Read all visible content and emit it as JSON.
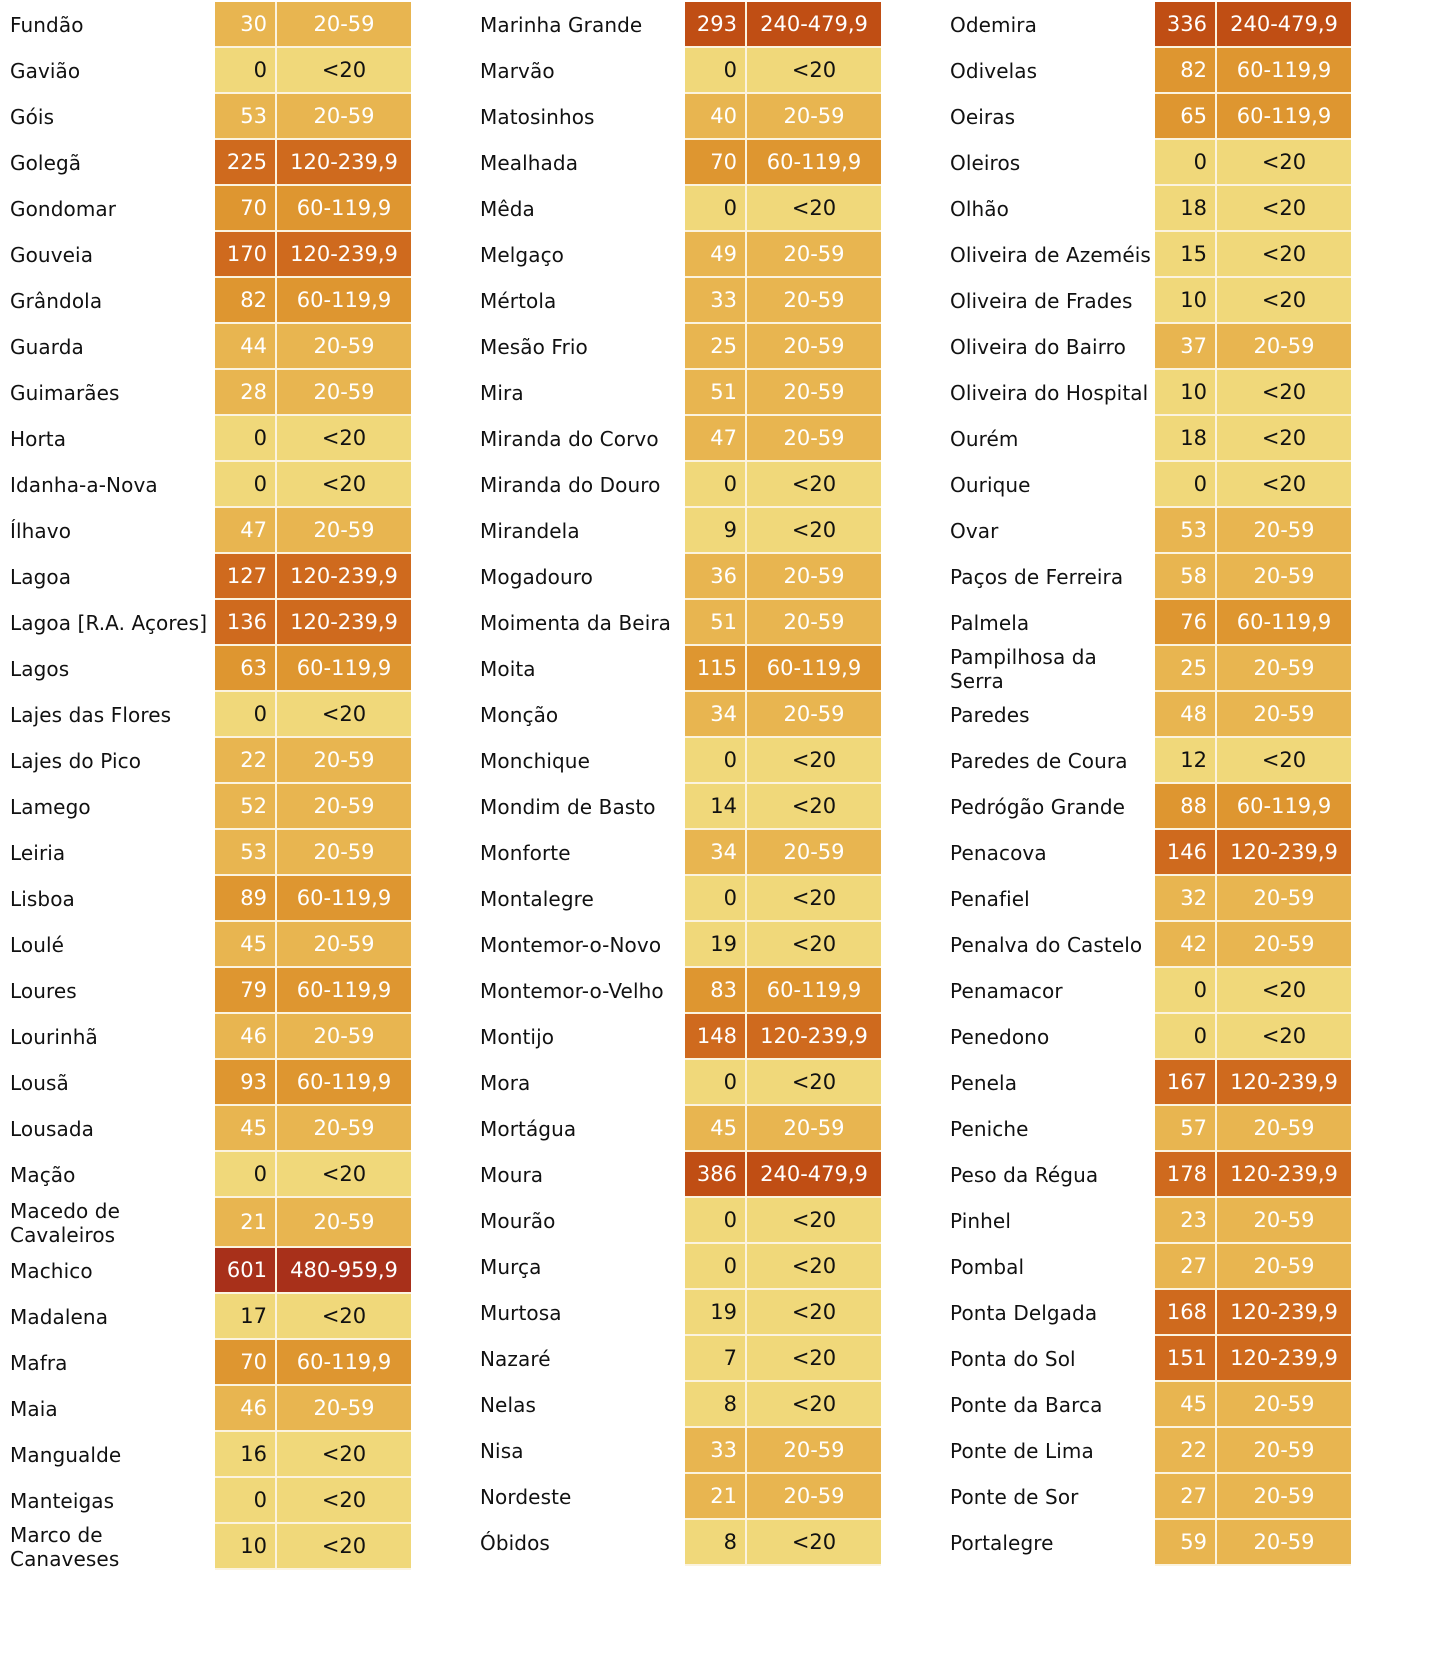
{
  "category_colors": {
    "<20": "#f0d87a",
    "20-59": "#e8b550",
    "60-119,9": "#de9630",
    "120-239,9": "#cf6a1e",
    "240-479,9": "#c04e14",
    "480-959,9": "#a8301a"
  },
  "columns": [
    {
      "rows": [
        {
          "name": "Fundão",
          "value": "30",
          "category": "20-59"
        },
        {
          "name": "Gavião",
          "value": "0",
          "category": "<20"
        },
        {
          "name": "Góis",
          "value": "53",
          "category": "20-59"
        },
        {
          "name": "Golegã",
          "value": "225",
          "category": "120-239,9"
        },
        {
          "name": "Gondomar",
          "value": "70",
          "category": "60-119,9"
        },
        {
          "name": "Gouveia",
          "value": "170",
          "category": "120-239,9"
        },
        {
          "name": "Grândola",
          "value": "82",
          "category": "60-119,9"
        },
        {
          "name": "Guarda",
          "value": "44",
          "category": "20-59"
        },
        {
          "name": "Guimarães",
          "value": "28",
          "category": "20-59"
        },
        {
          "name": "Horta",
          "value": "0",
          "category": "<20"
        },
        {
          "name": "Idanha-a-Nova",
          "value": "0",
          "category": "<20"
        },
        {
          "name": "Ílhavo",
          "value": "47",
          "category": "20-59"
        },
        {
          "name": "Lagoa",
          "value": "127",
          "category": "120-239,9"
        },
        {
          "name": "Lagoa [R.A. Açores]",
          "value": "136",
          "category": "120-239,9"
        },
        {
          "name": "Lagos",
          "value": "63",
          "category": "60-119,9"
        },
        {
          "name": "Lajes das Flores",
          "value": "0",
          "category": "<20"
        },
        {
          "name": "Lajes do Pico",
          "value": "22",
          "category": "20-59"
        },
        {
          "name": "Lamego",
          "value": "52",
          "category": "20-59"
        },
        {
          "name": "Leiria",
          "value": "53",
          "category": "20-59"
        },
        {
          "name": "Lisboa",
          "value": "89",
          "category": "60-119,9"
        },
        {
          "name": "Loulé",
          "value": "45",
          "category": "20-59"
        },
        {
          "name": "Loures",
          "value": "79",
          "category": "60-119,9"
        },
        {
          "name": "Lourinhã",
          "value": "46",
          "category": "20-59"
        },
        {
          "name": "Lousã",
          "value": "93",
          "category": "60-119,9"
        },
        {
          "name": "Lousada",
          "value": "45",
          "category": "20-59"
        },
        {
          "name": "Mação",
          "value": "0",
          "category": "<20"
        },
        {
          "name": "Macedo de Cavaleiros",
          "value": "21",
          "category": "20-59",
          "tall": true
        },
        {
          "name": "Machico",
          "value": "601",
          "category": "480-959,9"
        },
        {
          "name": "Madalena",
          "value": "17",
          "category": "<20"
        },
        {
          "name": "Mafra",
          "value": "70",
          "category": "60-119,9"
        },
        {
          "name": "Maia",
          "value": "46",
          "category": "20-59"
        },
        {
          "name": "Mangualde",
          "value": "16",
          "category": "<20"
        },
        {
          "name": "Manteigas",
          "value": "0",
          "category": "<20"
        },
        {
          "name": "Marco de Canaveses",
          "value": "10",
          "category": "<20"
        }
      ]
    },
    {
      "rows": [
        {
          "name": "Marinha Grande",
          "value": "293",
          "category": "240-479,9"
        },
        {
          "name": "Marvão",
          "value": "0",
          "category": "<20"
        },
        {
          "name": "Matosinhos",
          "value": "40",
          "category": "20-59"
        },
        {
          "name": "Mealhada",
          "value": "70",
          "category": "60-119,9"
        },
        {
          "name": "Mêda",
          "value": "0",
          "category": "<20"
        },
        {
          "name": "Melgaço",
          "value": "49",
          "category": "20-59"
        },
        {
          "name": "Mértola",
          "value": "33",
          "category": "20-59"
        },
        {
          "name": "Mesão Frio",
          "value": "25",
          "category": "20-59"
        },
        {
          "name": "Mira",
          "value": "51",
          "category": "20-59"
        },
        {
          "name": "Miranda do Corvo",
          "value": "47",
          "category": "20-59"
        },
        {
          "name": "Miranda do Douro",
          "value": "0",
          "category": "<20"
        },
        {
          "name": "Mirandela",
          "value": "9",
          "category": "<20"
        },
        {
          "name": "Mogadouro",
          "value": "36",
          "category": "20-59"
        },
        {
          "name": "Moimenta da Beira",
          "value": "51",
          "category": "20-59"
        },
        {
          "name": "Moita",
          "value": "115",
          "category": "60-119,9"
        },
        {
          "name": "Monção",
          "value": "34",
          "category": "20-59"
        },
        {
          "name": "Monchique",
          "value": "0",
          "category": "<20"
        },
        {
          "name": "Mondim de Basto",
          "value": "14",
          "category": "<20"
        },
        {
          "name": "Monforte",
          "value": "34",
          "category": "20-59"
        },
        {
          "name": "Montalegre",
          "value": "0",
          "category": "<20"
        },
        {
          "name": "Montemor-o-Novo",
          "value": "19",
          "category": "<20"
        },
        {
          "name": "Montemor-o-Velho",
          "value": "83",
          "category": "60-119,9"
        },
        {
          "name": "Montijo",
          "value": "148",
          "category": "120-239,9"
        },
        {
          "name": "Mora",
          "value": "0",
          "category": "<20"
        },
        {
          "name": "Mortágua",
          "value": "45",
          "category": "20-59"
        },
        {
          "name": "Moura",
          "value": "386",
          "category": "240-479,9"
        },
        {
          "name": "Mourão",
          "value": "0",
          "category": "<20"
        },
        {
          "name": "Murça",
          "value": "0",
          "category": "<20"
        },
        {
          "name": "Murtosa",
          "value": "19",
          "category": "<20"
        },
        {
          "name": "Nazaré",
          "value": "7",
          "category": "<20"
        },
        {
          "name": "Nelas",
          "value": "8",
          "category": "<20"
        },
        {
          "name": "Nisa",
          "value": "33",
          "category": "20-59"
        },
        {
          "name": "Nordeste",
          "value": "21",
          "category": "20-59"
        },
        {
          "name": "Óbidos",
          "value": "8",
          "category": "<20"
        }
      ]
    },
    {
      "rows": [
        {
          "name": "Odemira",
          "value": "336",
          "category": "240-479,9"
        },
        {
          "name": "Odivelas",
          "value": "82",
          "category": "60-119,9"
        },
        {
          "name": "Oeiras",
          "value": "65",
          "category": "60-119,9"
        },
        {
          "name": "Oleiros",
          "value": "0",
          "category": "<20"
        },
        {
          "name": "Olhão",
          "value": "18",
          "category": "<20"
        },
        {
          "name": "Oliveira de Azeméis",
          "value": "15",
          "category": "<20"
        },
        {
          "name": "Oliveira de Frades",
          "value": "10",
          "category": "<20"
        },
        {
          "name": "Oliveira do Bairro",
          "value": "37",
          "category": "20-59"
        },
        {
          "name": "Oliveira do Hospital",
          "value": "10",
          "category": "<20"
        },
        {
          "name": "Ourém",
          "value": "18",
          "category": "<20"
        },
        {
          "name": "Ourique",
          "value": "0",
          "category": "<20"
        },
        {
          "name": "Ovar",
          "value": "53",
          "category": "20-59"
        },
        {
          "name": "Paços de Ferreira",
          "value": "58",
          "category": "20-59"
        },
        {
          "name": "Palmela",
          "value": "76",
          "category": "60-119,9"
        },
        {
          "name": "Pampilhosa da Serra",
          "value": "25",
          "category": "20-59"
        },
        {
          "name": "Paredes",
          "value": "48",
          "category": "20-59"
        },
        {
          "name": "Paredes de Coura",
          "value": "12",
          "category": "<20"
        },
        {
          "name": "Pedrógão Grande",
          "value": "88",
          "category": "60-119,9"
        },
        {
          "name": "Penacova",
          "value": "146",
          "category": "120-239,9"
        },
        {
          "name": "Penafiel",
          "value": "32",
          "category": "20-59"
        },
        {
          "name": "Penalva do Castelo",
          "value": "42",
          "category": "20-59"
        },
        {
          "name": "Penamacor",
          "value": "0",
          "category": "<20"
        },
        {
          "name": "Penedono",
          "value": "0",
          "category": "<20"
        },
        {
          "name": "Penela",
          "value": "167",
          "category": "120-239,9"
        },
        {
          "name": "Peniche",
          "value": "57",
          "category": "20-59"
        },
        {
          "name": "Peso da Régua",
          "value": "178",
          "category": "120-239,9"
        },
        {
          "name": "Pinhel",
          "value": "23",
          "category": "20-59"
        },
        {
          "name": "Pombal",
          "value": "27",
          "category": "20-59"
        },
        {
          "name": "Ponta Delgada",
          "value": "168",
          "category": "120-239,9"
        },
        {
          "name": "Ponta do Sol",
          "value": "151",
          "category": "120-239,9"
        },
        {
          "name": "Ponte da Barca",
          "value": "45",
          "category": "20-59"
        },
        {
          "name": "Ponte de Lima",
          "value": "22",
          "category": "20-59"
        },
        {
          "name": "Ponte de Sor",
          "value": "27",
          "category": "20-59"
        },
        {
          "name": "Portalegre",
          "value": "59",
          "category": "20-59"
        }
      ]
    }
  ]
}
